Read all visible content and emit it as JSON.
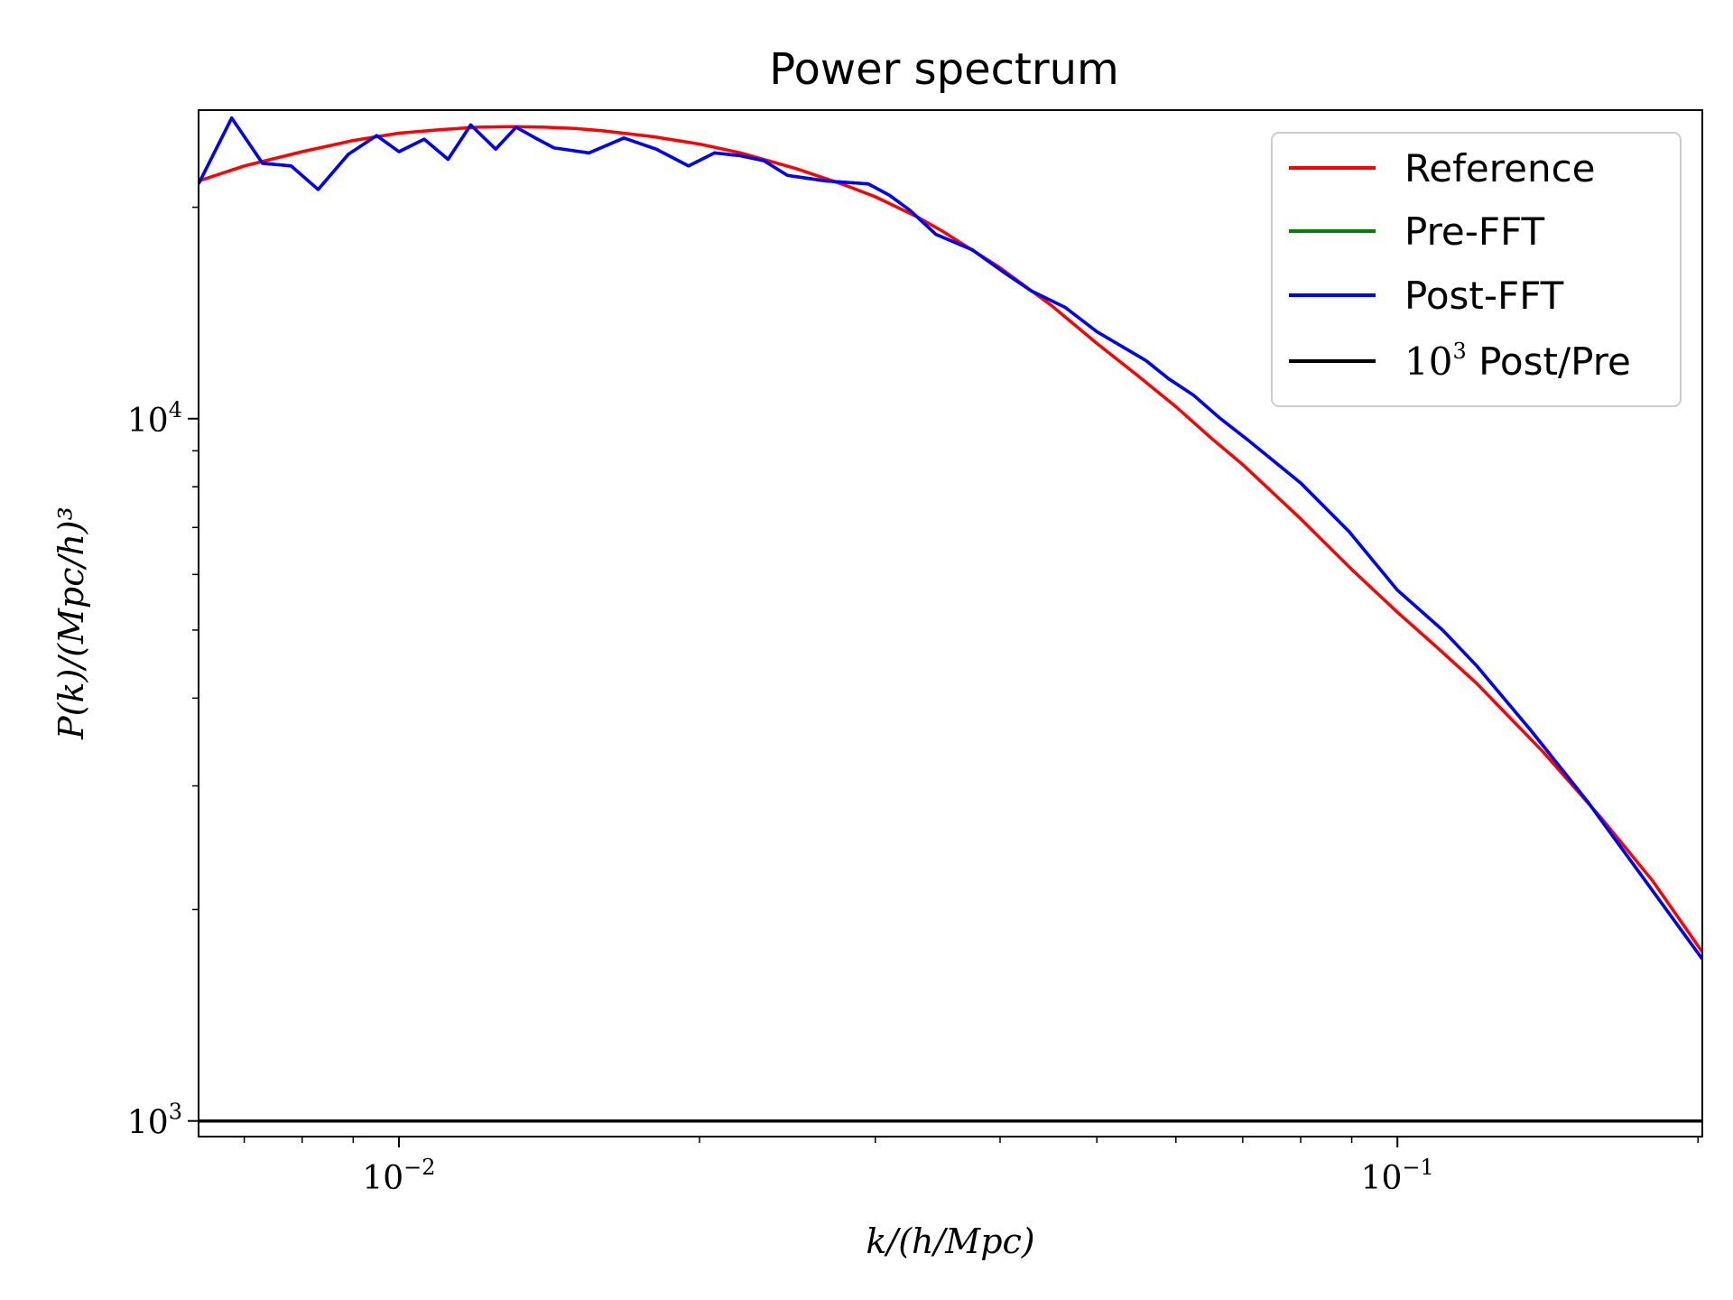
{
  "chart_data": {
    "type": "line",
    "title": "Power spectrum",
    "xlabel": "k/(h/Mpc)",
    "ylabel": "P(k)/(Mpc/h)³",
    "xscale": "log",
    "yscale": "log",
    "xlim": [
      0.0063,
      0.202
    ],
    "ylim": [
      950,
      27500
    ],
    "grid": false,
    "legend_position": "top-right",
    "x_ticks": [
      {
        "base": "10",
        "exp": "−2",
        "value": 0.01
      },
      {
        "base": "10",
        "exp": "−1",
        "value": 0.1
      }
    ],
    "y_ticks": [
      {
        "base": "10",
        "exp": "3",
        "value": 1000
      },
      {
        "base": "10",
        "exp": "4",
        "value": 10000
      }
    ],
    "series": [
      {
        "name": "Reference",
        "color": "#ff0000",
        "x": [
          0.0063,
          0.007,
          0.008,
          0.009,
          0.01,
          0.011,
          0.012,
          0.013,
          0.014,
          0.015,
          0.016,
          0.018,
          0.02,
          0.022,
          0.025,
          0.028,
          0.03,
          0.033,
          0.035,
          0.04,
          0.045,
          0.05,
          0.055,
          0.06,
          0.065,
          0.07,
          0.08,
          0.09,
          0.1,
          0.11,
          0.12,
          0.14,
          0.16,
          0.18,
          0.202
        ],
        "y": [
          21800,
          22900,
          24000,
          24900,
          25500,
          25800,
          26000,
          26050,
          26000,
          25900,
          25700,
          25200,
          24600,
          23900,
          22700,
          21500,
          20700,
          19400,
          18500,
          16400,
          14500,
          12800,
          11500,
          10400,
          9400,
          8600,
          7200,
          6100,
          5300,
          4700,
          4200,
          3350,
          2700,
          2200,
          1740
        ]
      },
      {
        "name": "Pre-FFT",
        "color": "#008000",
        "x": [
          0.0063,
          0.0068,
          0.0073,
          0.0078,
          0.0083,
          0.0089,
          0.0095,
          0.01,
          0.0106,
          0.0112,
          0.0118,
          0.0125,
          0.0131,
          0.0137,
          0.0143,
          0.0155,
          0.0168,
          0.0181,
          0.0195,
          0.0207,
          0.0219,
          0.0232,
          0.0245,
          0.0268,
          0.0295,
          0.031,
          0.0325,
          0.0345,
          0.0375,
          0.0405,
          0.043,
          0.0465,
          0.05,
          0.056,
          0.059,
          0.0625,
          0.0665,
          0.071,
          0.08,
          0.0895,
          0.1,
          0.111,
          0.12,
          0.136,
          0.155,
          0.175,
          0.202
        ],
        "y": [
          21600,
          26800,
          23100,
          22900,
          21200,
          23800,
          25300,
          24000,
          25000,
          23400,
          26200,
          24200,
          26000,
          25100,
          24300,
          23900,
          25100,
          24200,
          22900,
          23900,
          23700,
          23300,
          22200,
          21800,
          21600,
          20800,
          19800,
          18300,
          17400,
          16100,
          15200,
          14400,
          13300,
          12100,
          11400,
          10800,
          10000,
          9300,
          8100,
          6900,
          5700,
          5000,
          4450,
          3600,
          2850,
          2250,
          1700
        ]
      },
      {
        "name": "Post-FFT",
        "color": "#0000ff",
        "x": [
          0.0063,
          0.0068,
          0.0073,
          0.0078,
          0.0083,
          0.0089,
          0.0095,
          0.01,
          0.0106,
          0.0112,
          0.0118,
          0.0125,
          0.0131,
          0.0137,
          0.0143,
          0.0155,
          0.0168,
          0.0181,
          0.0195,
          0.0207,
          0.0219,
          0.0232,
          0.0245,
          0.0268,
          0.0295,
          0.031,
          0.0325,
          0.0345,
          0.0375,
          0.0405,
          0.043,
          0.0465,
          0.05,
          0.056,
          0.059,
          0.0625,
          0.0665,
          0.071,
          0.08,
          0.0895,
          0.1,
          0.111,
          0.12,
          0.136,
          0.155,
          0.175,
          0.202
        ],
        "y": [
          21600,
          26800,
          23100,
          22900,
          21200,
          23800,
          25300,
          24000,
          25000,
          23400,
          26200,
          24200,
          26000,
          25100,
          24300,
          23900,
          25100,
          24200,
          22900,
          23900,
          23700,
          23300,
          22200,
          21800,
          21600,
          20800,
          19800,
          18300,
          17400,
          16100,
          15200,
          14400,
          13300,
          12100,
          11400,
          10800,
          10000,
          9300,
          8100,
          6900,
          5700,
          5000,
          4450,
          3600,
          2850,
          2250,
          1700
        ]
      },
      {
        "name": "10³ Post/Pre",
        "legend_base": "10",
        "legend_exp": "3",
        "legend_rest": " Post/Pre",
        "color": "#000000",
        "x": [
          0.0063,
          0.202
        ],
        "y": [
          1000,
          1000
        ]
      }
    ]
  }
}
